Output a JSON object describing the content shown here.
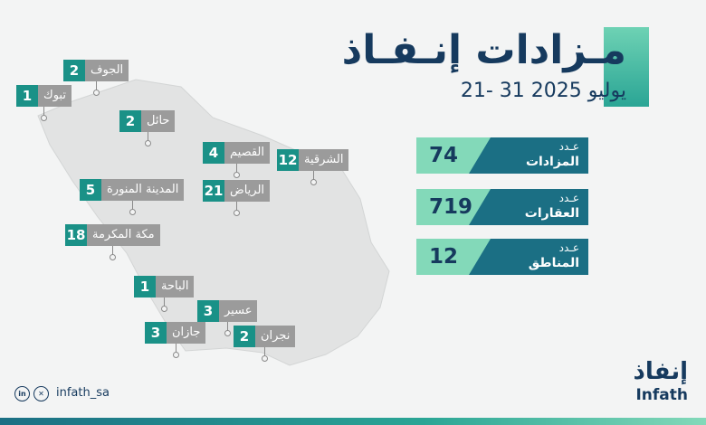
{
  "title": "مـزادات إنـفـاذ",
  "date_range": "21- 31 يوليو 2025",
  "regions": [
    {
      "name": "الجوف",
      "count": "2"
    },
    {
      "name": "تبوك",
      "count": "1"
    },
    {
      "name": "حائل",
      "count": "2"
    },
    {
      "name": "القصيم",
      "count": "4"
    },
    {
      "name": "الشرقية",
      "count": "12"
    },
    {
      "name": "المدينة المنورة",
      "count": "5"
    },
    {
      "name": "الرياض",
      "count": "21"
    },
    {
      "name": "مكة المكرمة",
      "count": "18"
    },
    {
      "name": "الباحة",
      "count": "1"
    },
    {
      "name": "عسير",
      "count": "3"
    },
    {
      "name": "جازان",
      "count": "3"
    },
    {
      "name": "نجران",
      "count": "2"
    }
  ],
  "stats": [
    {
      "line1": "عـدد",
      "line2": "المزادات",
      "value": "74"
    },
    {
      "line1": "عـدد",
      "line2": "العقارات",
      "value": "719"
    },
    {
      "line1": "عـدد",
      "line2": "المناطق",
      "value": "12"
    }
  ],
  "social": {
    "handle": "infath_sa",
    "icons": [
      "linkedin-icon",
      "x-icon"
    ]
  },
  "logo": {
    "arabic": "إنفاذ",
    "english": "Infath"
  },
  "colors": {
    "teal": "#1a9187",
    "navy": "#163a5e",
    "mint": "#83d9b9",
    "petrol": "#1b6f84",
    "gray": "#9b9b9b"
  }
}
